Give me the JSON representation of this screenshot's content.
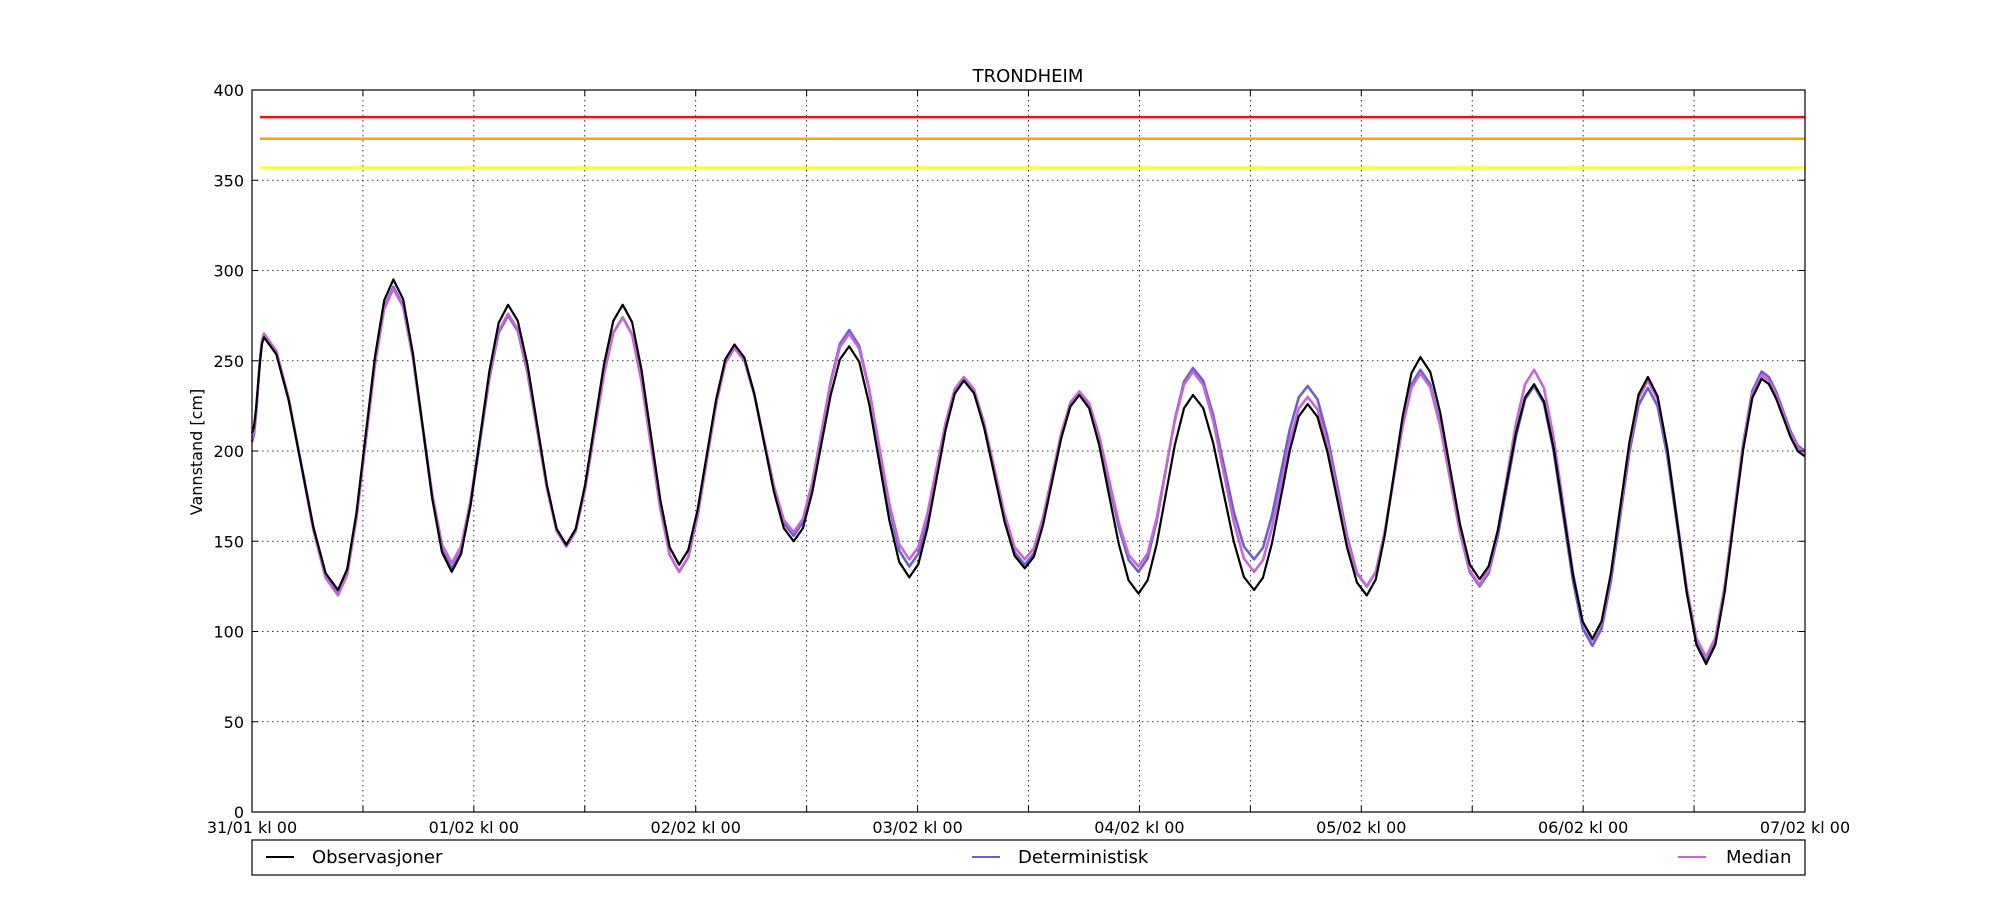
{
  "chart_data": {
    "type": "line",
    "title": "TRONDHEIM",
    "xlabel": "",
    "ylabel": "Vannstand [cm]",
    "ylim": [
      0,
      400
    ],
    "xlim_hours": [
      0,
      168
    ],
    "grid": true,
    "legend_placement": "bottom",
    "y_ticks": [
      0,
      50,
      100,
      150,
      200,
      250,
      300,
      350,
      400
    ],
    "x_ticks": [
      {
        "hours": 0,
        "label": "31/01 kl 00"
      },
      {
        "hours": 12,
        "label": ""
      },
      {
        "hours": 24,
        "label": "01/02 kl 00"
      },
      {
        "hours": 36,
        "label": ""
      },
      {
        "hours": 48,
        "label": "02/02 kl 00"
      },
      {
        "hours": 60,
        "label": ""
      },
      {
        "hours": 72,
        "label": "03/02 kl 00"
      },
      {
        "hours": 84,
        "label": ""
      },
      {
        "hours": 96,
        "label": "04/02 kl 00"
      },
      {
        "hours": 108,
        "label": ""
      },
      {
        "hours": 120,
        "label": "05/02 kl 00"
      },
      {
        "hours": 132,
        "label": ""
      },
      {
        "hours": 144,
        "label": "06/02 kl 00"
      },
      {
        "hours": 156,
        "label": ""
      },
      {
        "hours": 168,
        "label": "07/02 kl 00"
      }
    ],
    "threshold_lines": [
      {
        "value": 385,
        "color": "#ee1111"
      },
      {
        "value": 373,
        "color": "#ffa010"
      },
      {
        "value": 357,
        "color": "#ffff22"
      }
    ],
    "extrema": [
      {
        "hours": 1.3,
        "obs": 263,
        "det": 265,
        "med": 265
      },
      {
        "hours": 9.3,
        "obs": 123,
        "det": 122,
        "med": 120
      },
      {
        "hours": 15.3,
        "obs": 295,
        "det": 291,
        "med": 290
      },
      {
        "hours": 21.6,
        "obs": 133,
        "det": 135,
        "med": 138
      },
      {
        "hours": 27.7,
        "obs": 281,
        "det": 275,
        "med": 276
      },
      {
        "hours": 34.0,
        "obs": 148,
        "det": 148,
        "med": 147
      },
      {
        "hours": 40.1,
        "obs": 281,
        "det": 274,
        "med": 274
      },
      {
        "hours": 46.2,
        "obs": 137,
        "det": 133,
        "med": 133
      },
      {
        "hours": 52.2,
        "obs": 259,
        "det": 257,
        "med": 257
      },
      {
        "hours": 58.6,
        "obs": 150,
        "det": 153,
        "med": 155
      },
      {
        "hours": 64.6,
        "obs": 258,
        "det": 267,
        "med": 265
      },
      {
        "hours": 71.1,
        "obs": 130,
        "det": 136,
        "med": 140
      },
      {
        "hours": 77.0,
        "obs": 239,
        "det": 240,
        "med": 241
      },
      {
        "hours": 83.6,
        "obs": 135,
        "det": 137,
        "med": 140
      },
      {
        "hours": 89.5,
        "obs": 231,
        "det": 232,
        "med": 233
      },
      {
        "hours": 95.9,
        "obs": 121,
        "det": 133,
        "med": 136
      },
      {
        "hours": 101.8,
        "obs": 231,
        "det": 246,
        "med": 244
      },
      {
        "hours": 108.4,
        "obs": 123,
        "det": 140,
        "med": 133
      },
      {
        "hours": 114.2,
        "obs": 226,
        "det": 236,
        "med": 230
      },
      {
        "hours": 120.6,
        "obs": 120,
        "det": 125,
        "med": 125
      },
      {
        "hours": 126.4,
        "obs": 252,
        "det": 245,
        "med": 243
      },
      {
        "hours": 132.8,
        "obs": 129,
        "det": 125,
        "med": 126
      },
      {
        "hours": 138.7,
        "obs": 237,
        "det": 236,
        "med": 245
      },
      {
        "hours": 145.0,
        "obs": 96,
        "det": 92,
        "med": 95
      },
      {
        "hours": 151.0,
        "obs": 241,
        "det": 235,
        "med": 239
      },
      {
        "hours": 157.3,
        "obs": 82,
        "det": 84,
        "med": 86
      },
      {
        "hours": 163.3,
        "obs": 240,
        "det": 244,
        "med": 242
      }
    ],
    "start": {
      "hours": 0,
      "obs": 210,
      "det": 205,
      "med": 207
    },
    "end": {
      "hours": 168,
      "obs": 197,
      "det": 200,
      "med": 199
    },
    "series": [
      {
        "name": "Observasjoner",
        "key": "obs",
        "color": "#000000"
      },
      {
        "name": "Deterministisk",
        "key": "det",
        "color": "#6a5fd8"
      },
      {
        "name": "Median",
        "key": "med",
        "color": "#c866d8"
      }
    ]
  }
}
